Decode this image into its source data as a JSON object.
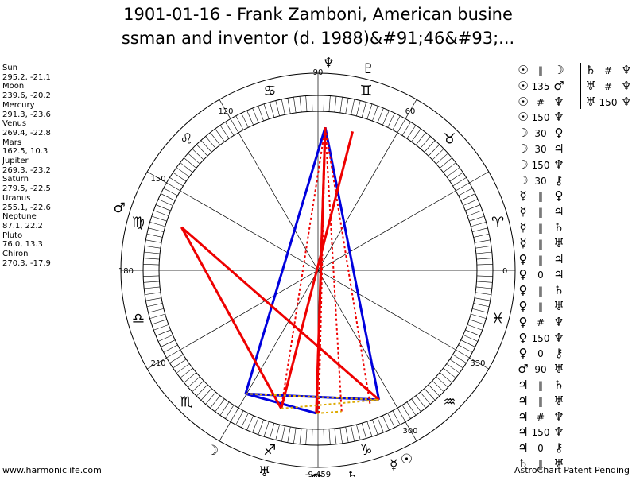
{
  "title": {
    "line1": "1901-01-16 - Frank Zamboni, American busine",
    "line2": "ssman and inventor (d. 1988)&#91;46&#93;..."
  },
  "planets": [
    {
      "name": "Sun",
      "coords": "295.2, -21.1"
    },
    {
      "name": "Moon",
      "coords": "239.6, -20.2"
    },
    {
      "name": "Mercury",
      "coords": "291.3, -23.6"
    },
    {
      "name": "Venus",
      "coords": "269.4, -22.8"
    },
    {
      "name": "Mars",
      "coords": "162.5, 10.3"
    },
    {
      "name": "Jupiter",
      "coords": "269.3, -23.2"
    },
    {
      "name": "Saturn",
      "coords": "279.5, -22.5"
    },
    {
      "name": "Uranus",
      "coords": "255.1, -22.6"
    },
    {
      "name": "Neptune",
      "coords": "87.1, 22.2"
    },
    {
      "name": "Pluto",
      "coords": "76.0, 13.3"
    },
    {
      "name": "Chiron",
      "coords": "270.3, -17.9"
    }
  ],
  "wheel": {
    "degree_labels": [
      {
        "text": "90",
        "deg": 90
      },
      {
        "text": "60",
        "deg": 60
      },
      {
        "text": "120",
        "deg": 120
      },
      {
        "text": "150",
        "deg": 150
      },
      {
        "text": "180",
        "deg": 180
      },
      {
        "text": "0",
        "deg": 0
      },
      {
        "text": "210",
        "deg": 210
      },
      {
        "text": "330",
        "deg": 330
      },
      {
        "text": "300",
        "deg": 300
      },
      {
        "text": "-9,459",
        "deg": 270
      }
    ],
    "signs": [
      {
        "glyph": "♈",
        "deg": 15
      },
      {
        "glyph": "♉",
        "deg": 45
      },
      {
        "glyph": "♊",
        "deg": 75
      },
      {
        "glyph": "♋",
        "deg": 105
      },
      {
        "glyph": "♌",
        "deg": 135
      },
      {
        "glyph": "♍",
        "deg": 165
      },
      {
        "glyph": "♎",
        "deg": 195
      },
      {
        "glyph": "♏",
        "deg": 225
      },
      {
        "glyph": "♐",
        "deg": 255
      },
      {
        "glyph": "♑",
        "deg": 285
      },
      {
        "glyph": "♒",
        "deg": 315
      },
      {
        "glyph": "♓",
        "deg": 345
      }
    ],
    "bodies": [
      {
        "name": "Sun",
        "glyph": "☉",
        "lon": 295.2
      },
      {
        "name": "Moon",
        "glyph": "☽",
        "lon": 239.6
      },
      {
        "name": "Mercury",
        "glyph": "☿",
        "lon": 291.3
      },
      {
        "name": "Venus",
        "glyph": "♀",
        "lon": 269.4
      },
      {
        "name": "Mars",
        "glyph": "♂",
        "lon": 162.5
      },
      {
        "name": "Jupiter",
        "glyph": "♃",
        "lon": 269.3
      },
      {
        "name": "Saturn",
        "glyph": "♄",
        "lon": 279.5
      },
      {
        "name": "Uranus",
        "glyph": "♅",
        "lon": 255.1
      },
      {
        "name": "Neptune",
        "glyph": "♆",
        "lon": 87.1
      },
      {
        "name": "Pluto",
        "glyph": "♇",
        "lon": 76.0
      },
      {
        "name": "Chiron",
        "glyph": "⚷",
        "lon": 270.3
      }
    ],
    "aspect_lines": [
      {
        "a": "Sun",
        "b": "Neptune",
        "color": "#0000dd",
        "style": "solid"
      },
      {
        "a": "Moon",
        "b": "Neptune",
        "color": "#0000dd",
        "style": "solid"
      },
      {
        "a": "Moon",
        "b": "Venus",
        "color": "#0000dd",
        "style": "solid"
      },
      {
        "a": "Moon",
        "b": "Sun",
        "color": "#0000dd",
        "style": "solid"
      },
      {
        "a": "Mars",
        "b": "Sun",
        "color": "#ee0000",
        "style": "solid"
      },
      {
        "a": "Mars",
        "b": "Uranus",
        "color": "#ee0000",
        "style": "solid"
      },
      {
        "a": "Uranus",
        "b": "Pluto",
        "color": "#ee0000",
        "style": "solid"
      },
      {
        "a": "Venus",
        "b": "Neptune",
        "color": "#ee0000",
        "style": "solid"
      },
      {
        "a": "Jupiter",
        "b": "Neptune",
        "color": "#ee0000",
        "style": "solid"
      },
      {
        "a": "Saturn",
        "b": "Neptune",
        "color": "#ee0000",
        "style": "dotted"
      },
      {
        "a": "Uranus",
        "b": "Neptune",
        "color": "#ee0000",
        "style": "dotted"
      },
      {
        "a": "Mercury",
        "b": "Neptune",
        "color": "#ee0000",
        "style": "dotted"
      },
      {
        "a": "Chiron",
        "b": "Neptune",
        "color": "#ee0000",
        "style": "dotted"
      },
      {
        "a": "Moon",
        "b": "Sun",
        "color": "#ddaa00",
        "style": "dotted"
      },
      {
        "a": "Uranus",
        "b": "Sun",
        "color": "#ddaa00",
        "style": "dotted"
      },
      {
        "a": "Venus",
        "b": "Saturn",
        "color": "#ddaa00",
        "style": "dotted"
      }
    ]
  },
  "aspects_col1": [
    {
      "p1": "☉",
      "sym": "‖",
      "p2": "☽"
    },
    {
      "p1": "☉",
      "sym": "135",
      "p2": "♂"
    },
    {
      "p1": "☉",
      "sym": "#",
      "p2": "♆"
    },
    {
      "p1": "☉",
      "sym": "150",
      "p2": "♆"
    },
    {
      "p1": "☽",
      "sym": "30",
      "p2": "♀"
    },
    {
      "p1": "☽",
      "sym": "30",
      "p2": "♃"
    },
    {
      "p1": "☽",
      "sym": "150",
      "p2": "♆"
    },
    {
      "p1": "☽",
      "sym": "30",
      "p2": "⚷"
    },
    {
      "p1": "☿",
      "sym": "‖",
      "p2": "♀"
    },
    {
      "p1": "☿",
      "sym": "‖",
      "p2": "♃"
    },
    {
      "p1": "☿",
      "sym": "‖",
      "p2": "♄"
    },
    {
      "p1": "☿",
      "sym": "‖",
      "p2": "♅"
    },
    {
      "p1": "♀",
      "sym": "‖",
      "p2": "♃"
    },
    {
      "p1": "♀",
      "sym": "0",
      "p2": "♃"
    },
    {
      "p1": "♀",
      "sym": "‖",
      "p2": "♄"
    },
    {
      "p1": "♀",
      "sym": "‖",
      "p2": "♅"
    },
    {
      "p1": "♀",
      "sym": "#",
      "p2": "♆"
    },
    {
      "p1": "♀",
      "sym": "150",
      "p2": "♆"
    },
    {
      "p1": "♀",
      "sym": "0",
      "p2": "⚷"
    },
    {
      "p1": "♂",
      "sym": "90",
      "p2": "♅"
    },
    {
      "p1": "♃",
      "sym": "‖",
      "p2": "♄"
    },
    {
      "p1": "♃",
      "sym": "‖",
      "p2": "♅"
    },
    {
      "p1": "♃",
      "sym": "#",
      "p2": "♆"
    },
    {
      "p1": "♃",
      "sym": "150",
      "p2": "♆"
    },
    {
      "p1": "♃",
      "sym": "0",
      "p2": "⚷"
    },
    {
      "p1": "♄",
      "sym": "‖",
      "p2": "♅"
    }
  ],
  "aspects_col2": [
    {
      "p1": "♄",
      "sym": "#",
      "p2": "♆"
    },
    {
      "p1": "♅",
      "sym": "#",
      "p2": "♆"
    },
    {
      "p1": "♅",
      "sym": "150",
      "p2": "♆"
    }
  ],
  "footer": {
    "left": "www.harmoniclife.com",
    "right": "AstroChart Patent Pending"
  }
}
